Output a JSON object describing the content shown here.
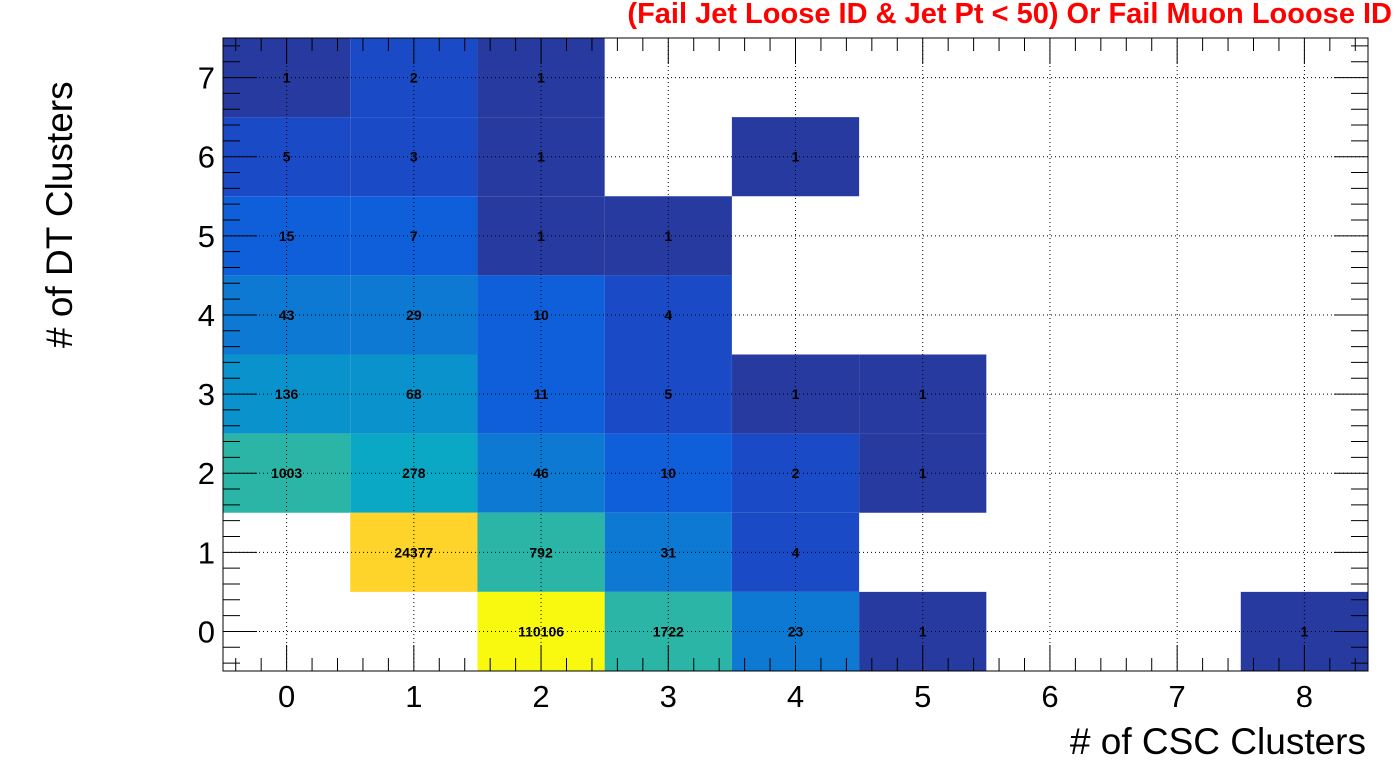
{
  "chart_data": {
    "type": "heatmap",
    "title": "(Fail Jet Loose ID & Jet Pt < 50) Or Fail Muon Looose ID",
    "xlabel": "# of CSC Clusters",
    "ylabel": "# of DT Clusters",
    "x_ticks": [
      "0",
      "1",
      "2",
      "3",
      "4",
      "5",
      "6",
      "7",
      "8"
    ],
    "y_ticks": [
      "0",
      "1",
      "2",
      "3",
      "4",
      "5",
      "6",
      "7"
    ],
    "xlim": [
      -0.5,
      8.5
    ],
    "ylim": [
      -0.5,
      7.5
    ],
    "grid": true,
    "cells": [
      {
        "x": 0,
        "y": 7,
        "value": 1,
        "label": "1"
      },
      {
        "x": 1,
        "y": 7,
        "value": 2,
        "label": "2"
      },
      {
        "x": 2,
        "y": 7,
        "value": 1,
        "label": "1"
      },
      {
        "x": 0,
        "y": 6,
        "value": 5,
        "label": "5"
      },
      {
        "x": 1,
        "y": 6,
        "value": 3,
        "label": "3"
      },
      {
        "x": 2,
        "y": 6,
        "value": 1,
        "label": "1"
      },
      {
        "x": 4,
        "y": 6,
        "value": 1,
        "label": "1"
      },
      {
        "x": 0,
        "y": 5,
        "value": 15,
        "label": "15"
      },
      {
        "x": 1,
        "y": 5,
        "value": 7,
        "label": "7"
      },
      {
        "x": 2,
        "y": 5,
        "value": 1,
        "label": "1"
      },
      {
        "x": 3,
        "y": 5,
        "value": 1,
        "label": "1"
      },
      {
        "x": 0,
        "y": 4,
        "value": 43,
        "label": "43"
      },
      {
        "x": 1,
        "y": 4,
        "value": 29,
        "label": "29"
      },
      {
        "x": 2,
        "y": 4,
        "value": 10,
        "label": "10"
      },
      {
        "x": 3,
        "y": 4,
        "value": 4,
        "label": "4"
      },
      {
        "x": 0,
        "y": 3,
        "value": 136,
        "label": "136"
      },
      {
        "x": 1,
        "y": 3,
        "value": 68,
        "label": "68"
      },
      {
        "x": 2,
        "y": 3,
        "value": 11,
        "label": "11"
      },
      {
        "x": 3,
        "y": 3,
        "value": 5,
        "label": "5"
      },
      {
        "x": 4,
        "y": 3,
        "value": 1,
        "label": "1"
      },
      {
        "x": 5,
        "y": 3,
        "value": 1,
        "label": "1"
      },
      {
        "x": 0,
        "y": 2,
        "value": 1003,
        "label": "1003"
      },
      {
        "x": 1,
        "y": 2,
        "value": 278,
        "label": "278"
      },
      {
        "x": 2,
        "y": 2,
        "value": 46,
        "label": "46"
      },
      {
        "x": 3,
        "y": 2,
        "value": 10,
        "label": "10"
      },
      {
        "x": 4,
        "y": 2,
        "value": 2,
        "label": "2"
      },
      {
        "x": 5,
        "y": 2,
        "value": 1,
        "label": "1"
      },
      {
        "x": 1,
        "y": 1,
        "value": 24377,
        "label": "24377"
      },
      {
        "x": 2,
        "y": 1,
        "value": 792,
        "label": "792"
      },
      {
        "x": 3,
        "y": 1,
        "value": 31,
        "label": "31"
      },
      {
        "x": 4,
        "y": 1,
        "value": 4,
        "label": "4"
      },
      {
        "x": 2,
        "y": 0,
        "value": 110106,
        "label": "110106"
      },
      {
        "x": 3,
        "y": 0,
        "value": 1722,
        "label": "1722"
      },
      {
        "x": 4,
        "y": 0,
        "value": 23,
        "label": "23"
      },
      {
        "x": 5,
        "y": 0,
        "value": 1,
        "label": "1"
      },
      {
        "x": 8,
        "y": 0,
        "value": 1,
        "label": "1"
      }
    ]
  },
  "colors": {
    "title": "#ff0000",
    "palette": [
      "#263aa0",
      "#1b4ac6",
      "#105fda",
      "#0d79d2",
      "#0a92cc",
      "#0aa8c4",
      "#2ab5a6",
      "#74b97c",
      "#9dbb68",
      "#ffd42a",
      "#f9f90f"
    ]
  }
}
